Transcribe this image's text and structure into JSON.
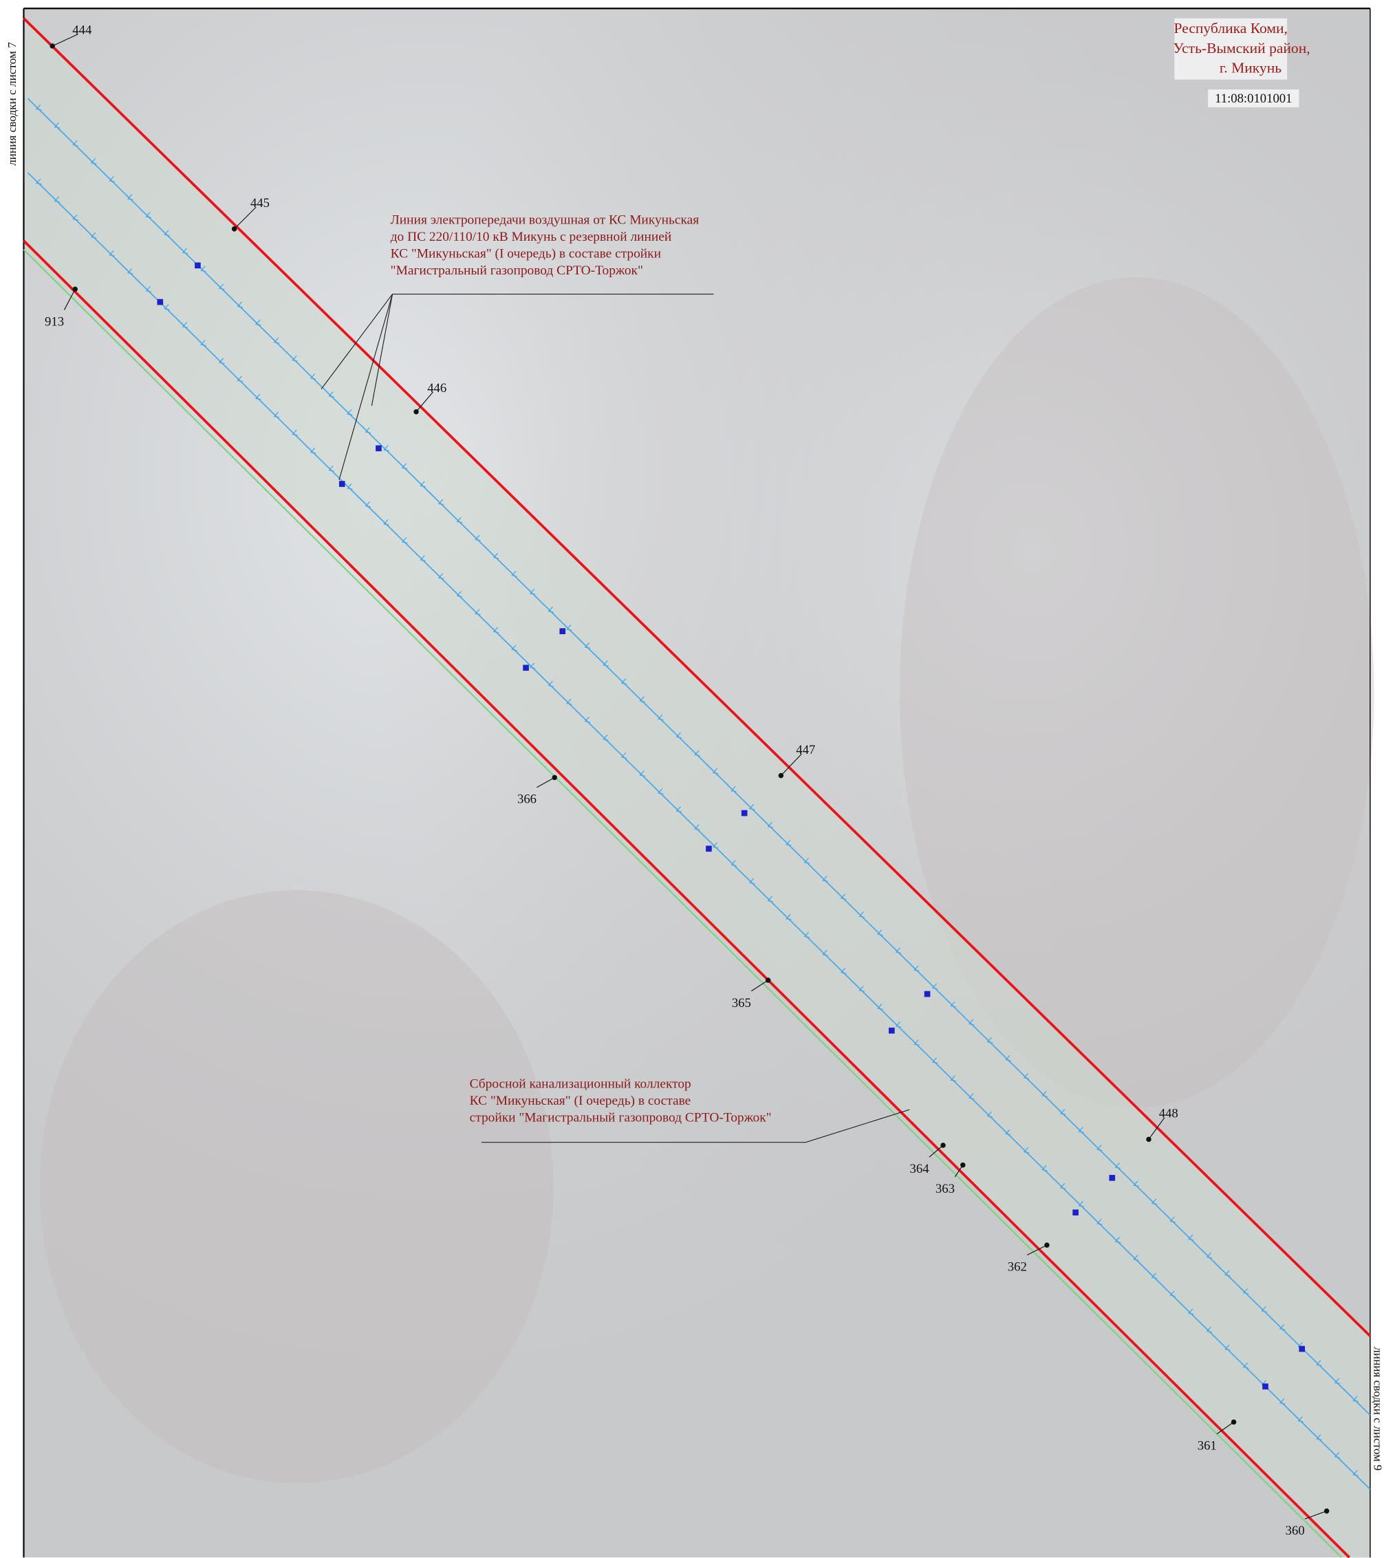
{
  "header": {
    "region": [
      "Республика Коми,",
      "Усть-Вымский район,",
      "г. Микунь"
    ],
    "cadastral": "11:08:0101001"
  },
  "side_labels": {
    "left": "линия сводки с листом 7",
    "right": "линия сводки с листом 9"
  },
  "annotations": [
    {
      "lines": [
        "Линия электропередачи воздушная от КС Микуньская",
        "до ПС 220/110/10 кВ  Микунь с резервной линией",
        " КС \"Микуньская\" (I очередь) в составе стройки",
        "\"Магистральный газопровод СРТО-Торжок\""
      ]
    },
    {
      "lines": [
        "Сбросной канализационный коллектор",
        " КС \"Микуньская\" (I очередь) в составе",
        "стройки \"Магистральный газопровод СРТО-Торжок\""
      ]
    }
  ],
  "points": [
    {
      "label": "444"
    },
    {
      "label": "445"
    },
    {
      "label": "446"
    },
    {
      "label": "447"
    },
    {
      "label": "448"
    },
    {
      "label": "913"
    },
    {
      "label": "366"
    },
    {
      "label": "365"
    },
    {
      "label": "364"
    },
    {
      "label": "363"
    },
    {
      "label": "362"
    },
    {
      "label": "361"
    },
    {
      "label": "360"
    }
  ]
}
